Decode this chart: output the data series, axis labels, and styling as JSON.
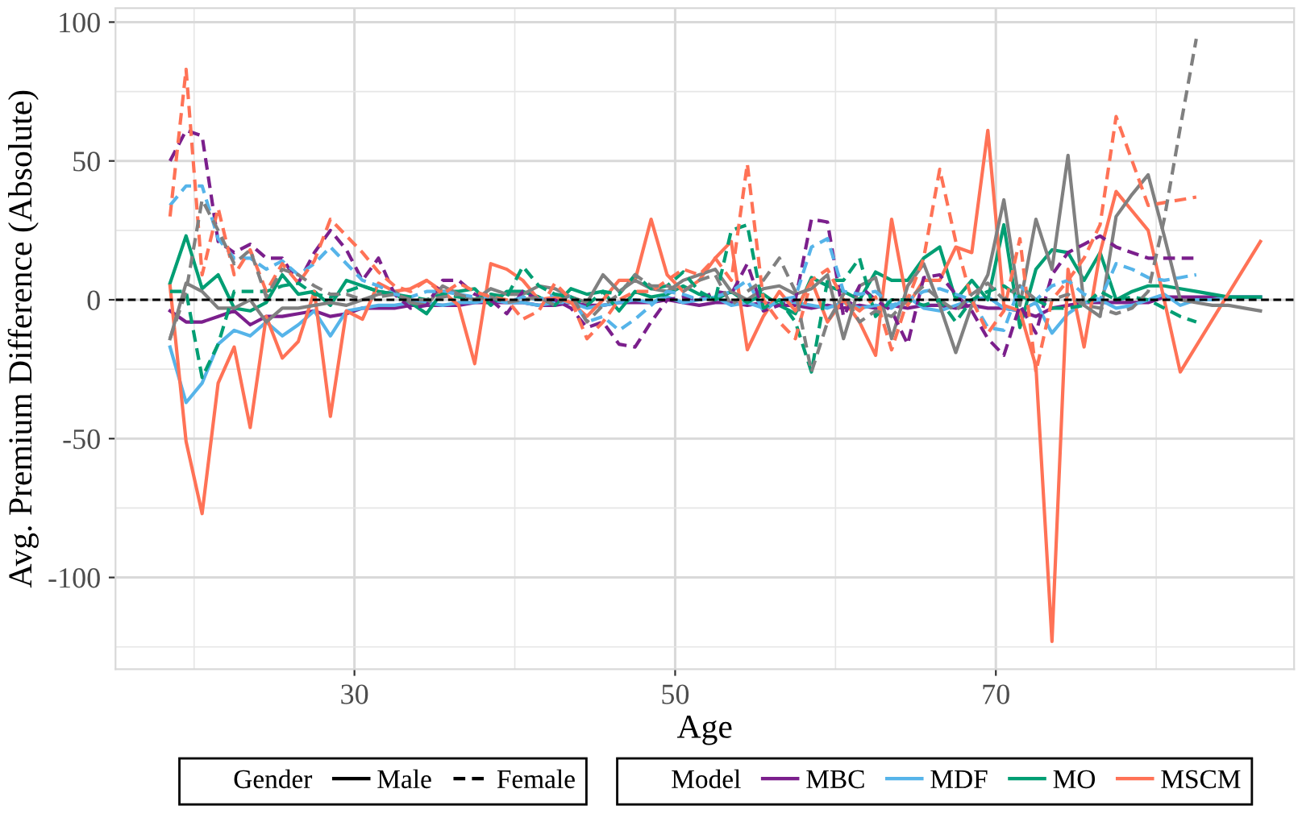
{
  "chart_data": {
    "type": "line",
    "xlabel": "Age",
    "ylabel": "Avg. Premium Difference (Absolute)",
    "xlim": [
      15.1,
      88.6
    ],
    "ylim": [
      -133,
      105
    ],
    "xticks": [
      30,
      50,
      70
    ],
    "yticks": [
      -100,
      -50,
      0,
      50,
      100
    ],
    "grid": true,
    "legend": "bottom",
    "legend_title": [
      "Gender",
      "Model"
    ],
    "annotations": [
      "Male",
      "Female"
    ],
    "ref_lines": [
      {
        "axis": "y",
        "value": 0,
        "color": "#000000",
        "line_style": "dashed"
      }
    ],
    "x": [
      18.5,
      19.5,
      20.5,
      21.5,
      22.5,
      23.5,
      24.5,
      25.5,
      26.5,
      27.5,
      28.5,
      29.5,
      30.5,
      31.5,
      32.5,
      33.5,
      34.5,
      35.5,
      36.5,
      37.5,
      38.5,
      39.5,
      40.5,
      41.5,
      42.5,
      43.5,
      44.5,
      45.5,
      46.5,
      47.5,
      48.5,
      49.5,
      50.5,
      51.5,
      52.5,
      53.5,
      54.5,
      55.5,
      56.5,
      57.5,
      58.5,
      59.5,
      60.5,
      61.5,
      62.5,
      63.5,
      64.5,
      65.5,
      66.5,
      67.5,
      68.5,
      69.5,
      70.5,
      71.5,
      72.5,
      73.5,
      74.5,
      75.5,
      76.5,
      77.5,
      78.5,
      79.5,
      80.5,
      81.5,
      82.5,
      83.5,
      84.5,
      85.5,
      86.5
    ],
    "series": [
      {
        "name": "MBC",
        "color": "#7b1f8c",
        "line_style": "solid",
        "values": [
          -4,
          -8,
          -8,
          -6,
          -4,
          -9,
          -6,
          -6,
          -5,
          -4,
          -6,
          -5,
          -3,
          -3,
          -3,
          -2,
          -2,
          -2,
          -2,
          -1,
          -1,
          -1,
          -1,
          -2,
          -2,
          -1,
          -2,
          -2,
          -1,
          -1,
          -1,
          0,
          -1,
          -2,
          -1,
          -1,
          -2,
          -1,
          -2,
          -2,
          -3,
          -2,
          -3,
          -2,
          -3,
          -2,
          -3,
          -2,
          -2,
          -3,
          -2,
          -3,
          -3,
          -4,
          -6,
          -3,
          -2,
          -1,
          -1,
          -1,
          -1,
          -1,
          1,
          1,
          1,
          1,
          1,
          1,
          1
        ]
      },
      {
        "name": "MDF",
        "color": "#56b4e9",
        "line_style": "solid",
        "values": [
          -17,
          -37,
          -30,
          -16,
          -11,
          -13,
          -8,
          -13,
          -9,
          -4,
          -13,
          -4,
          -3,
          -2,
          -2,
          -1,
          -1,
          -2,
          -1,
          -1,
          0,
          -1,
          -1,
          -2,
          -1,
          -1,
          -3,
          -2,
          -1,
          0,
          -1,
          1,
          -1,
          0,
          1,
          -2,
          -1,
          -3,
          0,
          -1,
          -2,
          -3,
          -1,
          -3,
          -2,
          -3,
          1,
          -3,
          -4,
          -2,
          0,
          1,
          -3,
          -4,
          -1,
          -12,
          -5,
          -1,
          0,
          -3,
          -2,
          0,
          2,
          -2,
          0,
          0,
          1,
          1,
          1
        ]
      },
      {
        "name": "MO",
        "color": "#009e73",
        "line_style": "solid",
        "values": [
          6,
          23,
          4,
          9,
          -3,
          -4,
          -1,
          9,
          2,
          3,
          -2,
          7,
          5,
          3,
          2,
          -1,
          -5,
          3,
          3,
          4,
          -2,
          3,
          3,
          1,
          -2,
          4,
          2,
          3,
          -4,
          3,
          1,
          2,
          5,
          2,
          0,
          3,
          -1,
          2,
          -2,
          -5,
          8,
          5,
          3,
          0,
          10,
          7,
          7,
          15,
          19,
          0,
          7,
          0,
          27,
          -10,
          11,
          18,
          17,
          7,
          17,
          0,
          3,
          5,
          5,
          4,
          3,
          2,
          1,
          1,
          1
        ]
      },
      {
        "name": "MSCM",
        "color": "#ff7256",
        "line_style": "solid",
        "x": [
          18.5,
          19.5,
          20.5,
          21.5,
          22.5,
          23.5,
          24.5,
          25.5,
          26.5,
          27.5,
          28.5,
          29.5,
          30.5,
          31.5,
          32.5,
          33.5,
          34.5,
          35.5,
          36.5,
          37.5,
          38.5,
          39.5,
          40.5,
          41.5,
          42.5,
          43.5,
          44.5,
          45.5,
          46.5,
          47.5,
          48.5,
          49.5,
          50.5,
          51.5,
          52.5,
          53.5,
          54.5,
          55.5,
          56.5,
          57.5,
          58.5,
          59.5,
          60.5,
          61.5,
          62.5,
          63.5,
          64.5,
          65.5,
          66.5,
          67.5,
          68.5,
          69.5,
          70.5,
          71.5,
          72.5,
          73.5,
          74.5,
          75.5,
          76.5,
          77.5,
          78.5,
          79.5,
          80.5,
          81.5,
          86.5
        ],
        "values": [
          5,
          -51,
          -77,
          -30,
          -17,
          -46,
          -6,
          -21,
          -15,
          3,
          -42,
          -4,
          -7,
          6,
          3,
          4,
          7,
          3,
          -2,
          -23,
          13,
          11,
          7,
          0,
          1,
          -1,
          -6,
          0,
          7,
          7,
          29,
          9,
          3,
          7,
          15,
          21,
          -18,
          -6,
          3,
          -4,
          7,
          -8,
          0,
          -8,
          -20,
          29,
          -2,
          7,
          7,
          19,
          17,
          61,
          -2,
          -4,
          -24,
          -123,
          11,
          -17,
          17,
          39,
          32,
          25,
          0,
          -26,
          21
        ]
      },
      {
        "color": "#808080",
        "line_style": "solid",
        "values": [
          -14,
          6,
          3,
          -3,
          -3,
          0,
          -8,
          -3,
          -3,
          -2,
          -1,
          -2,
          0,
          2,
          3,
          -1,
          -2,
          5,
          2,
          0,
          4,
          2,
          2,
          5,
          4,
          1,
          -1,
          9,
          3,
          7,
          4,
          3,
          7,
          9,
          11,
          3,
          0,
          4,
          5,
          2,
          4,
          9,
          -14,
          5,
          8,
          -14,
          5,
          13,
          -2,
          -19,
          -2,
          9,
          36,
          -2,
          29,
          11,
          52,
          -2,
          -6,
          30,
          38,
          45,
          23,
          0,
          -1,
          -2,
          -2,
          -3,
          -4
        ]
      },
      {
        "color": "#7b1f8c",
        "line_style": "dashed",
        "x": [
          18.5,
          19.5,
          20.5,
          21.5,
          22.5,
          23.5,
          24.5,
          25.5,
          26.5,
          27.5,
          28.5,
          29.5,
          30.5,
          31.5,
          32.5,
          33.5,
          34.5,
          35.5,
          36.5,
          37.5,
          38.5,
          39.5,
          40.5,
          41.5,
          42.5,
          43.5,
          44.5,
          45.5,
          46.5,
          47.5,
          48.5,
          49.5,
          50.5,
          51.5,
          52.5,
          53.5,
          54.5,
          55.5,
          56.5,
          57.5,
          58.5,
          59.5,
          60.5,
          61.5,
          62.5,
          63.5,
          64.5,
          65.5,
          66.5,
          67.5,
          68.5,
          69.5,
          70.5,
          71.5,
          72.5,
          73.5,
          74.5,
          75.5,
          76.5,
          77.5,
          78.5,
          79.5,
          80.5,
          81.5,
          82.5
        ],
        "values": [
          50,
          61,
          59,
          21,
          17,
          20,
          15,
          15,
          6,
          17,
          25,
          18,
          7,
          15,
          2,
          -3,
          -2,
          7,
          7,
          2,
          0,
          -5,
          3,
          0,
          0,
          -3,
          -10,
          -8,
          -16,
          -17,
          -8,
          0,
          1,
          0,
          3,
          2,
          13,
          -4,
          -2,
          0,
          29,
          28,
          -6,
          5,
          0,
          -4,
          -16,
          8,
          9,
          2,
          -4,
          -14,
          -20,
          -2,
          -12,
          9,
          17,
          20,
          23,
          19,
          17,
          15,
          15,
          15,
          15
        ]
      },
      {
        "color": "#56b4e9",
        "line_style": "dashed",
        "x": [
          18.5,
          19.5,
          20.5,
          21.5,
          22.5,
          23.5,
          24.5,
          25.5,
          26.5,
          27.5,
          28.5,
          29.5,
          30.5,
          31.5,
          32.5,
          33.5,
          34.5,
          35.5,
          36.5,
          37.5,
          38.5,
          39.5,
          40.5,
          41.5,
          42.5,
          43.5,
          44.5,
          45.5,
          46.5,
          47.5,
          48.5,
          49.5,
          50.5,
          51.5,
          52.5,
          53.5,
          54.5,
          55.5,
          56.5,
          57.5,
          58.5,
          59.5,
          60.5,
          61.5,
          62.5,
          63.5,
          64.5,
          65.5,
          66.5,
          67.5,
          68.5,
          69.5,
          70.5,
          71.5,
          72.5,
          73.5,
          74.5,
          75.5,
          76.5,
          77.5,
          78.5,
          79.5,
          80.5,
          81.5,
          82.5
        ],
        "values": [
          34,
          41,
          41,
          22,
          15,
          15,
          11,
          14,
          9,
          13,
          19,
          13,
          7,
          5,
          2,
          1,
          3,
          3,
          2,
          1,
          1,
          -1,
          1,
          0,
          2,
          1,
          -8,
          -6,
          -11,
          -7,
          -2,
          3,
          2,
          0,
          1,
          3,
          7,
          -4,
          0,
          1,
          19,
          22,
          3,
          2,
          3,
          -2,
          0,
          3,
          4,
          2,
          0,
          -10,
          -11,
          5,
          0,
          5,
          7,
          2,
          0,
          13,
          11,
          8,
          7,
          8,
          9
        ]
      },
      {
        "color": "#009e73",
        "line_style": "dashed",
        "x": [
          18.5,
          19.5,
          20.5,
          21.5,
          22.5,
          23.5,
          24.5,
          25.5,
          26.5,
          27.5,
          28.5,
          29.5,
          30.5,
          31.5,
          32.5,
          33.5,
          34.5,
          35.5,
          36.5,
          37.5,
          38.5,
          39.5,
          40.5,
          41.5,
          42.5,
          43.5,
          44.5,
          45.5,
          46.5,
          47.5,
          48.5,
          49.5,
          50.5,
          51.5,
          52.5,
          53.5,
          54.5,
          55.5,
          56.5,
          57.5,
          58.5,
          59.5,
          60.5,
          61.5,
          62.5,
          63.5,
          64.5,
          65.5,
          66.5,
          67.5,
          68.5,
          69.5,
          70.5,
          71.5,
          72.5,
          73.5,
          74.5,
          75.5,
          76.5,
          77.5,
          78.5,
          79.5,
          80.5,
          81.5,
          82.5
        ],
        "values": [
          3,
          3,
          -28,
          -16,
          3,
          3,
          3,
          5,
          6,
          2,
          1,
          3,
          5,
          3,
          2,
          1,
          0,
          2,
          1,
          0,
          2,
          1,
          12,
          5,
          2,
          1,
          -2,
          3,
          2,
          9,
          4,
          5,
          10,
          3,
          0,
          25,
          27,
          -3,
          0,
          -8,
          -26,
          7,
          7,
          15,
          -6,
          0,
          0,
          -2,
          0,
          -8,
          0,
          3,
          5,
          1,
          0,
          -3,
          -3,
          -2,
          3,
          0,
          1,
          0,
          -3,
          -6,
          -8
        ]
      },
      {
        "color": "#ff7256",
        "line_style": "dashed",
        "x": [
          18.5,
          19.5,
          20.5,
          21.5,
          22.5,
          23.5,
          24.5,
          25.5,
          26.5,
          27.5,
          28.5,
          29.5,
          30.5,
          31.5,
          32.5,
          33.5,
          34.5,
          35.5,
          36.5,
          37.5,
          38.5,
          39.5,
          40.5,
          41.5,
          42.5,
          43.5,
          44.5,
          45.5,
          46.5,
          47.5,
          48.5,
          49.5,
          50.5,
          51.5,
          52.5,
          53.5,
          54.5,
          55.5,
          56.5,
          57.5,
          58.5,
          59.5,
          60.5,
          61.5,
          62.5,
          63.5,
          64.5,
          65.5,
          66.5,
          67.5,
          68.5,
          69.5,
          70.5,
          71.5,
          72.5,
          73.5,
          74.5,
          75.5,
          76.5,
          77.5,
          78.5,
          79.5,
          80.5,
          81.5,
          82.5
        ],
        "values": [
          30,
          83,
          9,
          33,
          9,
          18,
          3,
          13,
          6,
          14,
          29,
          23,
          17,
          10,
          5,
          3,
          7,
          2,
          6,
          3,
          1,
          0,
          -7,
          -4,
          6,
          0,
          -14,
          -8,
          0,
          3,
          3,
          7,
          11,
          9,
          15,
          7,
          49,
          0,
          -8,
          -14,
          7,
          11,
          0,
          -4,
          1,
          -18,
          0,
          15,
          47,
          21,
          0,
          -12,
          -4,
          22,
          -26,
          0,
          7,
          15,
          27,
          66,
          50,
          34,
          35,
          36,
          37
        ]
      },
      {
        "color": "#808080",
        "line_style": "dashed",
        "x": [
          18.5,
          19.5,
          20.5,
          21.5,
          22.5,
          23.5,
          24.5,
          25.5,
          26.5,
          27.5,
          28.5,
          29.5,
          30.5,
          31.5,
          32.5,
          33.5,
          34.5,
          35.5,
          36.5,
          37.5,
          38.5,
          39.5,
          40.5,
          41.5,
          42.5,
          43.5,
          44.5,
          45.5,
          46.5,
          47.5,
          48.5,
          49.5,
          50.5,
          51.5,
          52.5,
          53.5,
          54.5,
          55.5,
          56.5,
          57.5,
          58.5,
          59.5,
          60.5,
          61.5,
          62.5,
          63.5,
          64.5,
          65.5,
          66.5,
          67.5,
          68.5,
          69.5,
          70.5,
          71.5,
          72.5,
          73.5,
          74.5,
          75.5,
          76.5,
          77.5,
          78.5,
          79.5,
          80.5,
          81.5,
          82.5
        ],
        "values": [
          -14,
          3,
          36,
          25,
          13,
          18,
          1,
          11,
          9,
          5,
          2,
          2,
          0,
          1,
          2,
          0,
          0,
          1,
          2,
          0,
          1,
          -1,
          0,
          1,
          -2,
          2,
          -8,
          -2,
          2,
          9,
          5,
          5,
          3,
          7,
          9,
          -2,
          3,
          7,
          15,
          3,
          -26,
          -8,
          2,
          -8,
          -4,
          -6,
          0,
          5,
          0,
          -4,
          2,
          6,
          0,
          5,
          0,
          0,
          2,
          -2,
          -3,
          -5,
          -3,
          3,
          29,
          62,
          94
        ]
      }
    ]
  }
}
